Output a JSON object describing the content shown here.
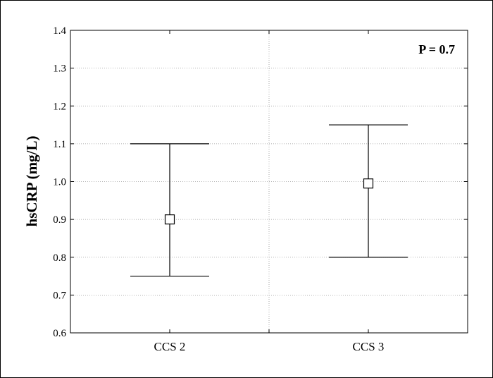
{
  "chart_data": {
    "type": "errorbar",
    "title": "",
    "xlabel": "",
    "ylabel": "hsCRP (mg/L)",
    "ylim": [
      0.6,
      1.4
    ],
    "yticks": [
      0.6,
      0.7,
      0.8,
      0.9,
      1.0,
      1.1,
      1.2,
      1.3,
      1.4
    ],
    "ytick_labels": [
      "0.6",
      "0.7",
      "0.8",
      "0.9",
      "1.0",
      "1.1",
      "1.2",
      "1.3",
      "1.4"
    ],
    "categories": [
      "CCS 2",
      "CCS 3"
    ],
    "points": [
      {
        "category": "CCS 2",
        "mean": 0.9,
        "lower": 0.75,
        "upper": 1.1
      },
      {
        "category": "CCS 3",
        "mean": 0.995,
        "lower": 0.8,
        "upper": 1.15
      }
    ],
    "annotation": "P = 0.7",
    "grid": true,
    "marker": "open-square"
  }
}
